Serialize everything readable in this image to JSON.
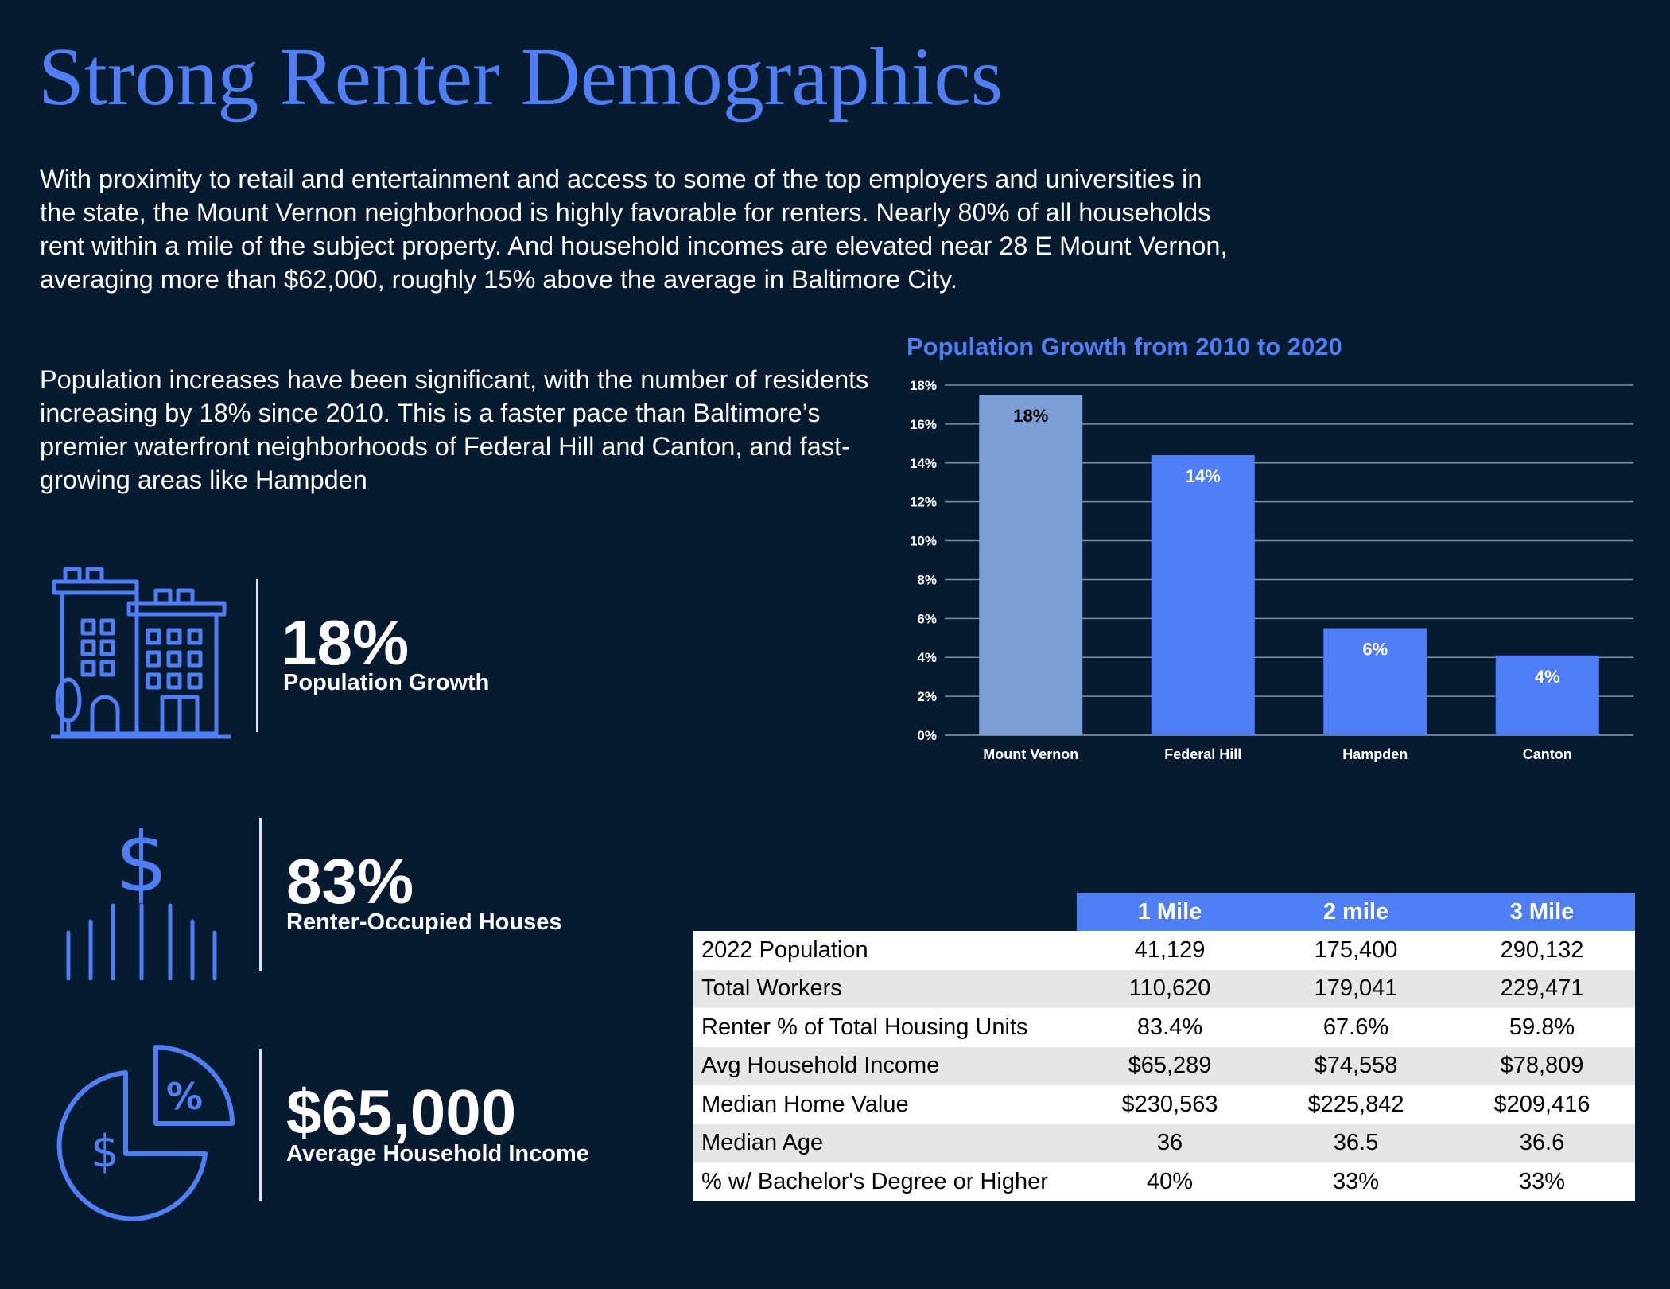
{
  "title": "Strong Renter Demographics",
  "paragraphs": [
    "With proximity to retail and entertainment and access to some of the top employers and universities in the state, the Mount Vernon neighborhood is highly favorable for renters. Nearly 80% of all households rent within a mile of the subject property. And household incomes are elevated near 28 E Mount Vernon, averaging more than $62,000, roughly 15% above the average in Baltimore City.",
    "Population increases have been significant, with the number of residents increasing by 18% since 2010. This is a faster pace than Baltimore’s premier waterfront neighborhoods of Federal Hill and Canton, and fast-growing areas like Hampden"
  ],
  "stats": [
    {
      "value": "18%",
      "label": "Population Growth",
      "icon": "buildings-icon"
    },
    {
      "value": "83%",
      "label": "Renter-Occupied Houses",
      "icon": "dollar-bars-icon"
    },
    {
      "value": "$65,000",
      "label": "Average Household Income",
      "icon": "pie-dollar-percent-icon"
    }
  ],
  "colors": {
    "background": "#061a30",
    "accent": "#4f7ef5",
    "bar_highlight": "#7b9ed6"
  },
  "chart_data": {
    "type": "bar",
    "title": "Population Growth from 2010 to 2020",
    "categories": [
      "Mount Vernon",
      "Federal Hill",
      "Hampden",
      "Canton"
    ],
    "values": [
      17.5,
      14.4,
      5.5,
      4.1
    ],
    "data_labels": [
      "18%",
      "14%",
      "6%",
      "4%"
    ],
    "yticks": [
      "0%",
      "2%",
      "4%",
      "6%",
      "8%",
      "10%",
      "12%",
      "14%",
      "16%",
      "18%"
    ],
    "ylim": [
      0,
      18
    ],
    "grid": true,
    "legend": "none"
  },
  "table": {
    "headers": [
      "1 Mile",
      "2 mile",
      "3 Mile"
    ],
    "rows": [
      {
        "label": "2022 Population",
        "values": [
          "41,129",
          "175,400",
          "290,132"
        ]
      },
      {
        "label": "Total Workers",
        "values": [
          "110,620",
          "179,041",
          "229,471"
        ]
      },
      {
        "label": "Renter % of Total Housing Units",
        "values": [
          "83.4%",
          "67.6%",
          "59.8%"
        ]
      },
      {
        "label": "Avg Household Income",
        "values": [
          "$65,289",
          "$74,558",
          "$78,809"
        ]
      },
      {
        "label": "Median Home Value",
        "values": [
          "$230,563",
          "$225,842",
          "$209,416"
        ]
      },
      {
        "label": "Median Age",
        "values": [
          "36",
          "36.5",
          "36.6"
        ]
      },
      {
        "label": "% w/ Bachelor's Degree or Higher",
        "values": [
          "40%",
          "33%",
          "33%"
        ]
      }
    ]
  }
}
